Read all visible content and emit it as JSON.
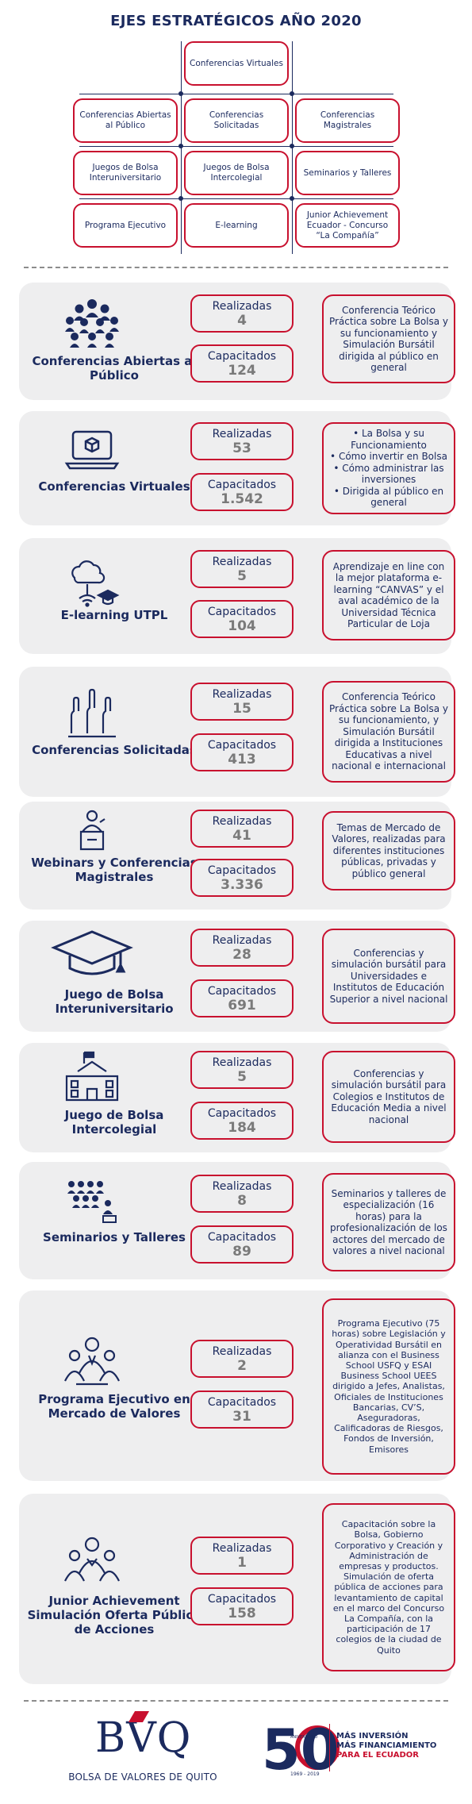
{
  "title": "EJES ESTRATÉGICOS AÑO 2020",
  "grid": {
    "top": "Conferencias Virtuales",
    "row1": [
      "Conferencias Abiertas al Público",
      "Conferencias Solicitadas",
      "Conferencias Magistrales"
    ],
    "row2": [
      "Juegos de Bolsa Interuniversitario",
      "Juegos de Bolsa Intercolegial",
      "Seminarios y Talleres"
    ],
    "row3": [
      "Programa Ejecutivo",
      "E-learning",
      "Junior Achievement Ecuador - Concurso “La Compañía”"
    ]
  },
  "labels": {
    "realizadas": "Realizadas",
    "capacitados": "Capacitados"
  },
  "sections": [
    {
      "name": "Conferencias Abiertas al Público",
      "icon": "audience-icon",
      "realizadas": "4",
      "capacitados": "124",
      "desc": "Conferencia Teórico Práctica sobre La Bolsa y su funcionamiento y Simulación Bursátil dirigida al público en general"
    },
    {
      "name": "Conferencias Virtuales",
      "icon": "laptop-icon",
      "realizadas": "53",
      "capacitados": "1.542",
      "bullets": [
        "La Bolsa y su Funcionamiento",
        "Cómo invertir en Bolsa",
        "Cómo administrar las inversiones",
        "Dirigida al público en general"
      ]
    },
    {
      "name": "E-learning UTPL",
      "icon": "cloud-graduation-icon",
      "realizadas": "5",
      "capacitados": "104",
      "desc": "Aprendizaje en line con la mejor plataforma e-learning “CANVAS” y el aval académico de la Universidad Técnica Particular de Loja"
    },
    {
      "name": "Conferencias Solicitadas",
      "icon": "raised-hands-icon",
      "realizadas": "15",
      "capacitados": "413",
      "desc": "Conferencia Teórico Práctica sobre La Bolsa y su funcionamiento, y Simulación Bursátil dirigida a Instituciones Educativas a nivel nacional e internacional"
    },
    {
      "name": "Webinars y Conferencias Magistrales",
      "icon": "speaker-podium-icon",
      "realizadas": "41",
      "capacitados": "3.336",
      "desc": "Temas de Mercado de Valores, realizadas para diferentes instituciones públicas, privadas y público general"
    },
    {
      "name": "Juego de Bolsa Interuniversitario",
      "icon": "graduation-cap-icon",
      "realizadas": "28",
      "capacitados": "691",
      "desc": "Conferencias y simulación bursátil para Universidades e Institutos de Educación Superior a nivel nacional"
    },
    {
      "name": "Juego de Bolsa Intercolegial",
      "icon": "school-building-icon",
      "realizadas": "5",
      "capacitados": "184",
      "desc": "Conferencias y simulación bursátil para Colegios e Institutos de Educación Media a nivel nacional"
    },
    {
      "name": "Seminarios y Talleres",
      "icon": "seminar-icon",
      "realizadas": "8",
      "capacitados": "89",
      "desc": "Seminarios y talleres de especialización (16 horas) para la profesionalización de los actores del mercado de valores a nivel nacional"
    },
    {
      "name": "Programa Ejecutivo en Mercado de Valores",
      "icon": "executives-icon",
      "realizadas": "2",
      "capacitados": "31",
      "desc": "Programa Ejecutivo (75 horas) sobre Legislación y Operatividad Bursátil en alianza con el Business School USFQ y ESAI Business School UEES dirigido a Jefes, Analistas, Oficiales de Instituciones Bancarias, CV’S, Aseguradoras, Calificadoras de Riesgos, Fondos de Inversión, Emisores"
    },
    {
      "name": "Junior Achievement Simulación Oferta Pública de Acciones",
      "icon": "team-icon",
      "realizadas": "1",
      "capacitados": "158",
      "desc": "Capacitación sobre la Bolsa, Gobierno Corporativo y Creación y Administración de empresas y productos. Simulación de oferta pública de acciones para levantamiento de capital en el marco del Concurso La Compañía, con la participación de 17 colegios de la ciudad de Quito"
    }
  ],
  "footer": {
    "logo_letters": "BVQ",
    "logo_name": "BOLSA DE VALORES DE QUITO",
    "anniversary_number": "50",
    "anniversary_word": "ANIVERSARIO",
    "anniversary_years": "1969 - 2019",
    "slogan_1": "MÁS INVERSIÓN",
    "slogan_2": "MÁS FINANCIAMIENTO",
    "slogan_3": "PARA EL ECUADOR"
  }
}
